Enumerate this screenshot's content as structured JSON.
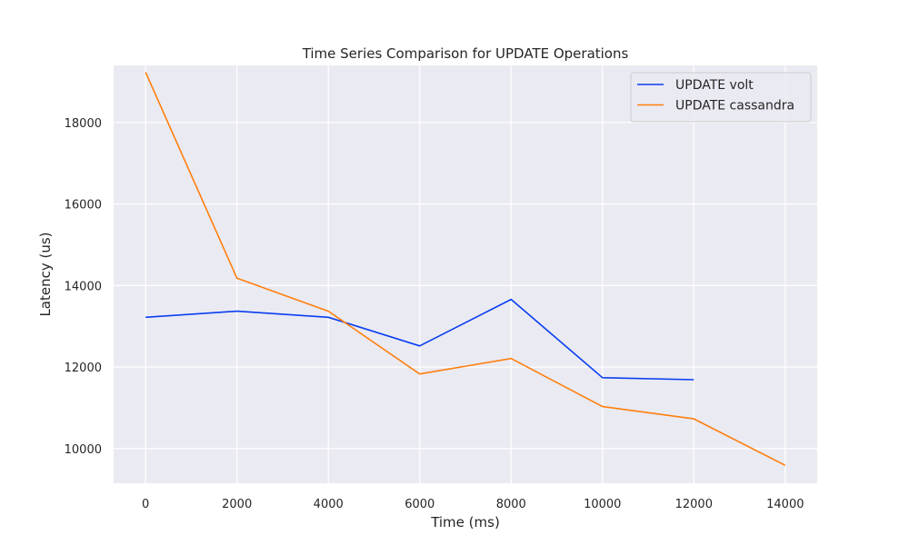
{
  "chart_data": {
    "type": "line",
    "title": "Time Series Comparison for UPDATE Operations",
    "xlabel": "Time (ms)",
    "ylabel": "Latency (us)",
    "xlim": [
      -700,
      14700
    ],
    "ylim": [
      9150,
      19400
    ],
    "xticks": [
      0,
      2000,
      4000,
      6000,
      8000,
      10000,
      12000,
      14000
    ],
    "yticks": [
      10000,
      12000,
      14000,
      16000,
      18000
    ],
    "grid": true,
    "legend_position": "top-right",
    "series": [
      {
        "name": "UPDATE volt",
        "color": "#0a3ef0",
        "x": [
          0,
          2000,
          4000,
          6000,
          8000,
          10000,
          12000
        ],
        "y": [
          13220,
          13370,
          13220,
          12520,
          13660,
          11740,
          11690
        ]
      },
      {
        "name": "UPDATE cassandra",
        "color": "#ff7f0e",
        "x": [
          0,
          2000,
          4000,
          6000,
          8000,
          10000,
          12000,
          14000
        ],
        "y": [
          19230,
          14180,
          13370,
          11830,
          12210,
          11030,
          10730,
          9590
        ]
      }
    ]
  }
}
